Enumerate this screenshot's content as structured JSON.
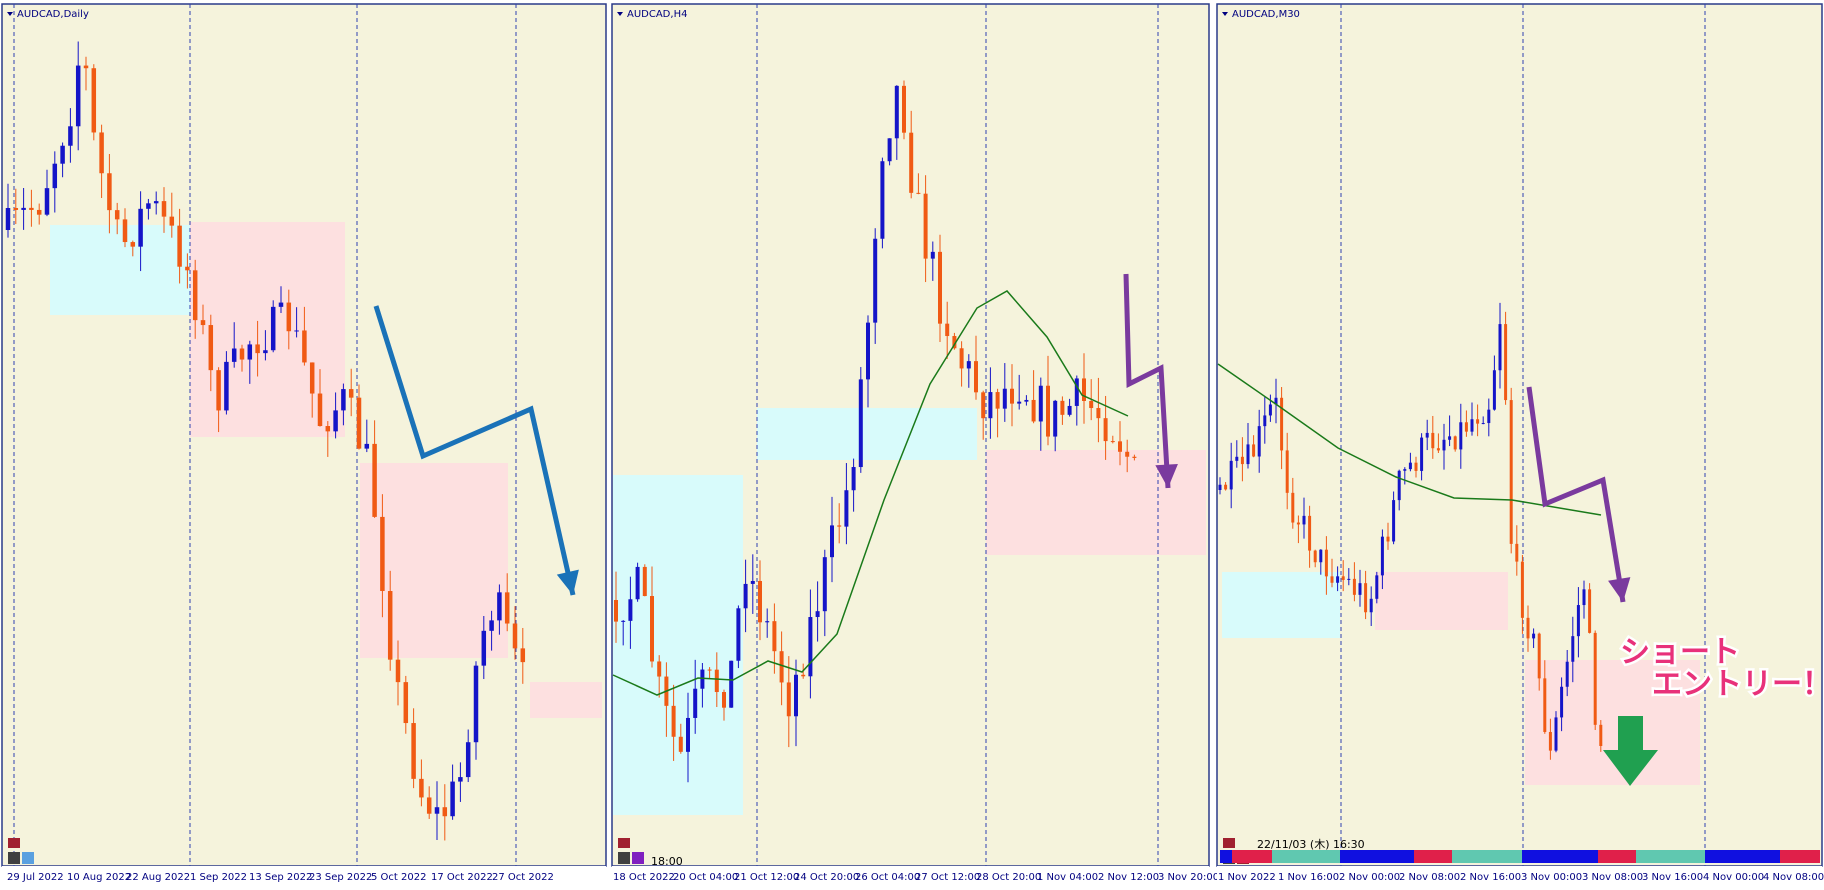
{
  "panels": [
    {
      "title": "AUDCAD,Daily",
      "x_labels": [
        "29 Jul 2022",
        "10 Aug 2022",
        "22 Aug 2022",
        "1 Sep 2022",
        "13 Sep 2022",
        "23 Sep 2022",
        "5 Oct 2022",
        "17 Oct 2022",
        "27 Oct 2022"
      ]
    },
    {
      "title": "AUDCAD,H4",
      "x_labels": [
        "18 Oct 2022",
        "20 Oct 04:00",
        "21 Oct 12:00",
        "24 Oct 20:00",
        "26 Oct 04:00",
        "27 Oct 12:00",
        "28 Oct 20:00",
        "1 Nov 04:00",
        "2 Nov 12:00",
        "3 Nov 20:00"
      ],
      "time_label": "18:00"
    },
    {
      "title": "AUDCAD,M30",
      "x_labels": [
        "1 Nov 2022",
        "1 Nov 16:00",
        "2 Nov 00:00",
        "2 Nov 08:00",
        "2 Nov 16:00",
        "3 Nov 00:00",
        "3 Nov 08:00",
        "3 Nov 16:00",
        "4 Nov 00:00",
        "4 Nov 08:00"
      ],
      "time_label": "22/11/03 (木) 16:30"
    }
  ],
  "annotation": [
    "ショート",
    "エントリー！"
  ]
}
